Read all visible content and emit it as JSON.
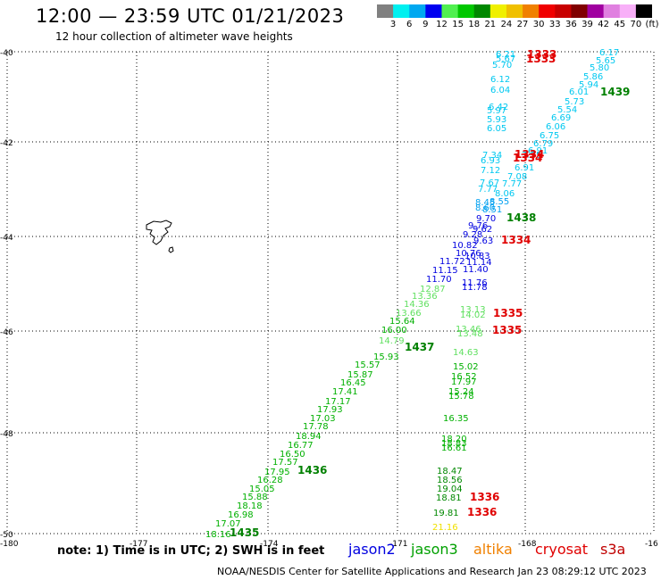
{
  "header": {
    "title": "12:00 — 23:59 UTC 01/21/2023",
    "subtitle": "12 hour collection of altimeter wave heights"
  },
  "colorbar": {
    "colors": [
      "#808080",
      "#00f0f0",
      "#00a8f0",
      "#0000f0",
      "#50f050",
      "#00c800",
      "#008800",
      "#f0f000",
      "#f0c000",
      "#f08000",
      "#f00000",
      "#c80000",
      "#800000",
      "#a000a0",
      "#e080e0",
      "#f8b0f8",
      "#000000"
    ],
    "labels": [
      "3",
      "6",
      "9",
      "12",
      "15",
      "18",
      "21",
      "24",
      "27",
      "30",
      "33",
      "36",
      "39",
      "42",
      "45",
      "70",
      "(ft)"
    ]
  },
  "axes": {
    "lon_ticks": [
      "-180",
      "-177",
      "-174",
      "-171",
      "-168",
      "-16"
    ],
    "lat_ticks": [
      "-40",
      "-42",
      "-44",
      "-46",
      "-48",
      "-50"
    ]
  },
  "map": {
    "observations": [
      {
        "v": "6.21",
        "c": "#00c8f0"
      },
      {
        "v": "5.67",
        "c": "#00c8f0"
      },
      {
        "v": "5.70",
        "c": "#00c8f0"
      },
      {
        "v": "6.12",
        "c": "#00c8f0"
      },
      {
        "v": "6.04",
        "c": "#00c8f0"
      },
      {
        "v": "6.42",
        "c": "#00c8f0"
      },
      {
        "v": "5.97",
        "c": "#00c8f0"
      },
      {
        "v": "5.93",
        "c": "#00c8f0"
      },
      {
        "v": "6.05",
        "c": "#00c8f0"
      },
      {
        "v": "6.17",
        "c": "#00c8f0"
      },
      {
        "v": "5.65",
        "c": "#00c8f0"
      },
      {
        "v": "5.80",
        "c": "#00c8f0"
      },
      {
        "v": "5.86",
        "c": "#00c8f0"
      },
      {
        "v": "5.94",
        "c": "#00c8f0"
      },
      {
        "v": "6.01",
        "c": "#00c8f0"
      },
      {
        "v": "5.73",
        "c": "#00c8f0"
      },
      {
        "v": "5.54",
        "c": "#00c8f0"
      },
      {
        "v": "6.69",
        "c": "#00c8f0"
      },
      {
        "v": "6.06",
        "c": "#00c8f0"
      },
      {
        "v": "6.75",
        "c": "#00c8f0"
      },
      {
        "v": "6.79",
        "c": "#00c8f0"
      },
      {
        "v": "6.91",
        "c": "#00c8f0"
      },
      {
        "v": "7.35",
        "c": "#00c8f0"
      },
      {
        "v": "7.34",
        "c": "#00c8f0"
      },
      {
        "v": "6.93",
        "c": "#00c8f0"
      },
      {
        "v": "7.12",
        "c": "#00c8f0"
      },
      {
        "v": "6.91",
        "c": "#00c8f0"
      },
      {
        "v": "7.08",
        "c": "#00c8f0"
      },
      {
        "v": "7.67",
        "c": "#00c8f0"
      },
      {
        "v": "7.77",
        "c": "#00c8f0"
      },
      {
        "v": "7.77",
        "c": "#00c8f0"
      },
      {
        "v": "8.06",
        "c": "#00c8f0"
      },
      {
        "v": "8.55",
        "c": "#00a0f0"
      },
      {
        "v": "8.45",
        "c": "#00a0f0"
      },
      {
        "v": "8.60",
        "c": "#00a0f0"
      },
      {
        "v": "8.51",
        "c": "#00a0f0"
      },
      {
        "v": "9.70",
        "c": "#0000e0"
      },
      {
        "v": "9.76",
        "c": "#0000e0"
      },
      {
        "v": "9.62",
        "c": "#0000e0"
      },
      {
        "v": "9.28",
        "c": "#0000e0"
      },
      {
        "v": "9.63",
        "c": "#0000e0"
      },
      {
        "v": "10.82",
        "c": "#0000e0"
      },
      {
        "v": "10.76",
        "c": "#0000e0"
      },
      {
        "v": "10.83",
        "c": "#0000e0"
      },
      {
        "v": "11.72",
        "c": "#0000e0"
      },
      {
        "v": "11.14",
        "c": "#0000e0"
      },
      {
        "v": "11.15",
        "c": "#0000e0"
      },
      {
        "v": "11.40",
        "c": "#0000e0"
      },
      {
        "v": "11.70",
        "c": "#0000e0"
      },
      {
        "v": "11.76",
        "c": "#0000e0"
      },
      {
        "v": "11.78",
        "c": "#0000e0"
      },
      {
        "v": "12.87",
        "c": "#60e060"
      },
      {
        "v": "13.36",
        "c": "#60e060"
      },
      {
        "v": "14.36",
        "c": "#60e060"
      },
      {
        "v": "13.66",
        "c": "#60e060"
      },
      {
        "v": "13.13",
        "c": "#60e060"
      },
      {
        "v": "14.02",
        "c": "#60e060"
      },
      {
        "v": "13.46",
        "c": "#60e060"
      },
      {
        "v": "13.48",
        "c": "#60e060"
      },
      {
        "v": "14.63",
        "c": "#60e060"
      },
      {
        "v": "14.79",
        "c": "#60e060"
      },
      {
        "v": "15.64",
        "c": "#00b000"
      },
      {
        "v": "16.00",
        "c": "#00b000"
      },
      {
        "v": "15.93",
        "c": "#00b000"
      },
      {
        "v": "15.57",
        "c": "#00b000"
      },
      {
        "v": "15.87",
        "c": "#00b000"
      },
      {
        "v": "16.45",
        "c": "#00b000"
      },
      {
        "v": "17.41",
        "c": "#00b000"
      },
      {
        "v": "17.17",
        "c": "#00b000"
      },
      {
        "v": "17.93",
        "c": "#00b000"
      },
      {
        "v": "17.03",
        "c": "#00b000"
      },
      {
        "v": "17.78",
        "c": "#00b000"
      },
      {
        "v": "18.94",
        "c": "#00b000"
      },
      {
        "v": "16.77",
        "c": "#00b000"
      },
      {
        "v": "16.50",
        "c": "#00b000"
      },
      {
        "v": "17.57",
        "c": "#00b000"
      },
      {
        "v": "17.95",
        "c": "#00b000"
      },
      {
        "v": "16.28",
        "c": "#00b000"
      },
      {
        "v": "15.05",
        "c": "#00b000"
      },
      {
        "v": "15.88",
        "c": "#00b000"
      },
      {
        "v": "18.18",
        "c": "#00b000"
      },
      {
        "v": "16.98",
        "c": "#00b000"
      },
      {
        "v": "17.07",
        "c": "#00b000"
      },
      {
        "v": "18.16",
        "c": "#00b000"
      },
      {
        "v": "15.02",
        "c": "#00b000"
      },
      {
        "v": "16.52",
        "c": "#00b000"
      },
      {
        "v": "17.97",
        "c": "#00b000"
      },
      {
        "v": "15.24",
        "c": "#00b000"
      },
      {
        "v": "15.78",
        "c": "#00b000"
      },
      {
        "v": "16.35",
        "c": "#00b000"
      },
      {
        "v": "18.20",
        "c": "#00b000"
      },
      {
        "v": "18.83",
        "c": "#00b000"
      },
      {
        "v": "16.61",
        "c": "#00b000"
      },
      {
        "v": "18.47",
        "c": "#008800"
      },
      {
        "v": "18.56",
        "c": "#008800"
      },
      {
        "v": "19.04",
        "c": "#008800"
      },
      {
        "v": "18.81",
        "c": "#008800"
      },
      {
        "v": "19.81",
        "c": "#008800"
      },
      {
        "v": "21.16",
        "c": "#f0e000"
      }
    ],
    "times": [
      {
        "t": "1333",
        "c": "#e00000"
      },
      {
        "t": "1333",
        "c": "#e00000"
      },
      {
        "t": "1439",
        "c": "#008000"
      },
      {
        "t": "1334",
        "c": "#e00000"
      },
      {
        "t": "1334",
        "c": "#e00000"
      },
      {
        "t": "1438",
        "c": "#008000"
      },
      {
        "t": "1334",
        "c": "#e00000"
      },
      {
        "t": "1335",
        "c": "#e00000"
      },
      {
        "t": "1335",
        "c": "#e00000"
      },
      {
        "t": "1437",
        "c": "#008000"
      },
      {
        "t": "1436",
        "c": "#008000"
      },
      {
        "t": "1336",
        "c": "#e00000"
      },
      {
        "t": "1336",
        "c": "#e00000"
      },
      {
        "t": "1435",
        "c": "#008000"
      }
    ]
  },
  "footer": {
    "note": "note: 1) Time is in UTC; 2) SWH is in feet",
    "satellites": [
      {
        "name": "jason2",
        "color": "#0000e0"
      },
      {
        "name": "jason3",
        "color": "#00a000"
      },
      {
        "name": "altika",
        "color": "#f08000"
      },
      {
        "name": "cryosat",
        "color": "#e00000"
      },
      {
        "name": "s3a",
        "color": "#c00000"
      }
    ],
    "credit": "NOAA/NESDIS Center for Satellite Applications and Research   Jan 23 08:29:12 UTC 2023"
  }
}
